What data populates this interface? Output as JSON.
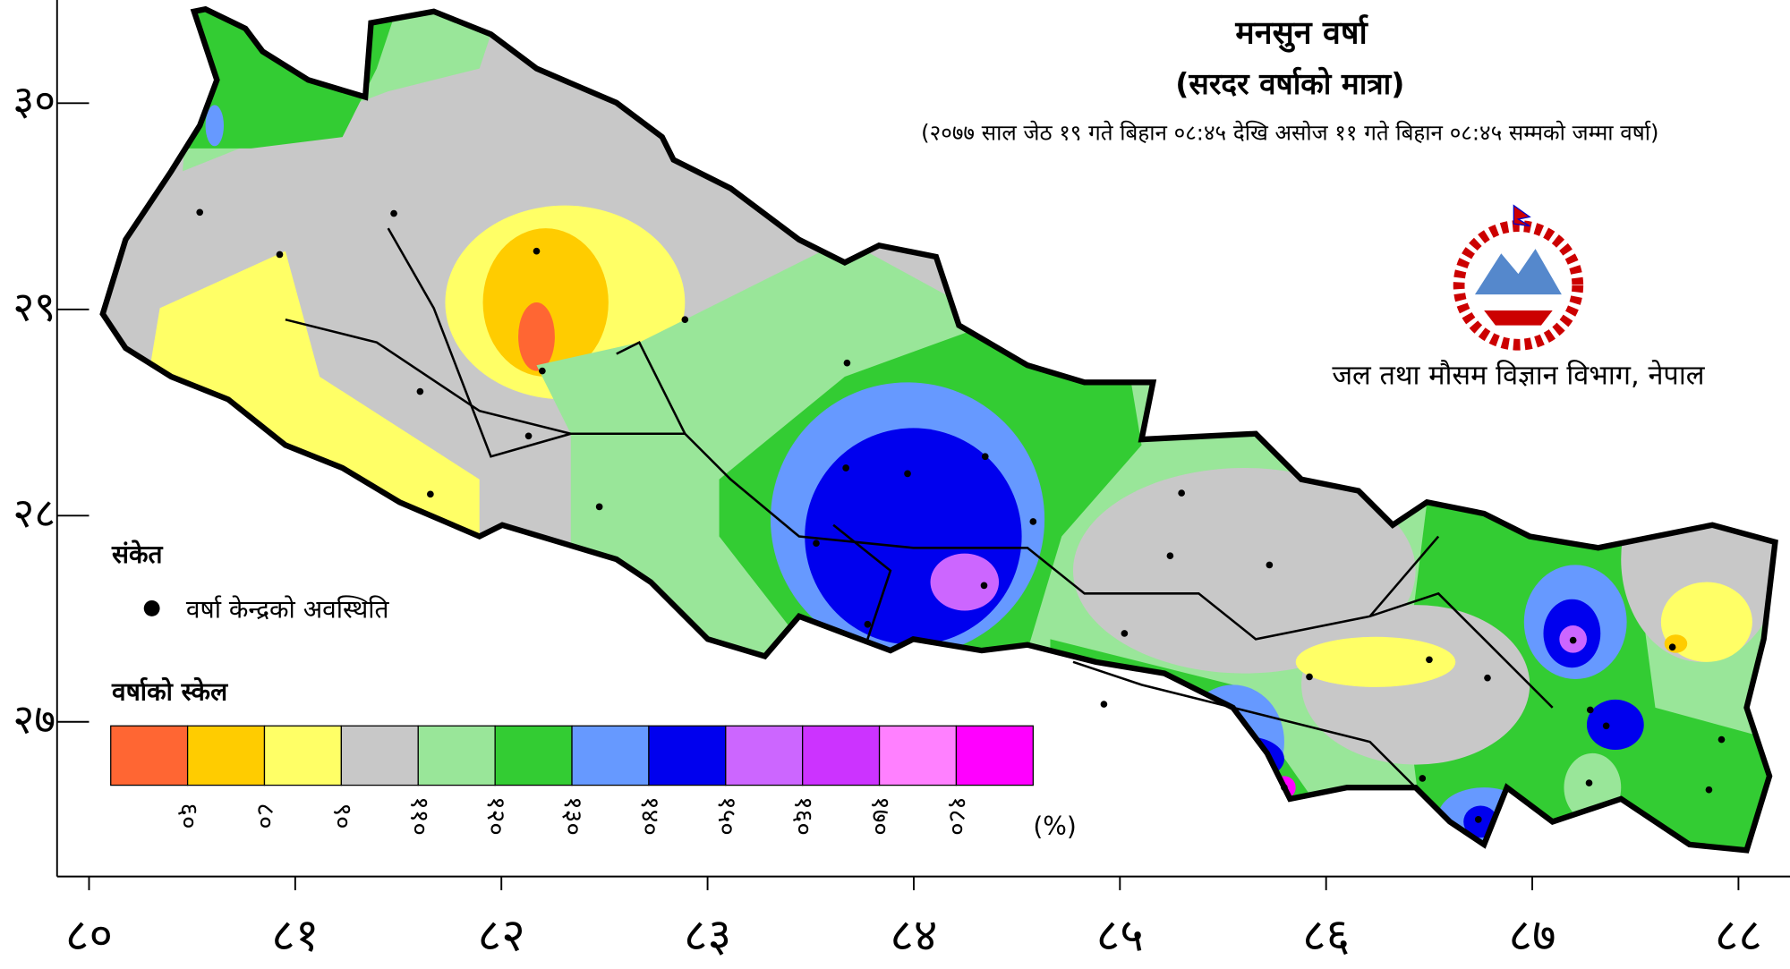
{
  "header": {
    "title": "मनसुन वर्षा",
    "subtitle": "(सरदर वर्षाको मात्रा)",
    "period": "(२०७७ साल जेठ १९ गते बिहान ०८:४५ देखि असोज ११ गते बिहान ०८:४५ सम्मको जम्मा वर्षा)",
    "organization": "जल तथा मौसम विज्ञान विभाग, नेपाल"
  },
  "legend": {
    "title": "संकेत",
    "station_label": "वर्षा केन्द्रको अवस्थिति"
  },
  "scale": {
    "title": "वर्षाको स्केल",
    "unit": "(%)",
    "colors": [
      "#ff6633",
      "#ffcc00",
      "#ffff66",
      "#c8c8c8",
      "#99e699",
      "#33cc33",
      "#6699ff",
      "#0000ee",
      "#cc66ff",
      "#cc33ff",
      "#ff80ff",
      "#ff00ff"
    ],
    "labels": [
      {
        "value": 60,
        "label": "६०"
      },
      {
        "value": 80,
        "label": "८०"
      },
      {
        "value": 90,
        "label": "९०"
      },
      {
        "value": 110,
        "label": "११०"
      },
      {
        "value": 120,
        "label": "१२०"
      },
      {
        "value": 130,
        "label": "१३०"
      },
      {
        "value": 140,
        "label": "१४०"
      },
      {
        "value": 150,
        "label": "१५०"
      },
      {
        "value": 160,
        "label": "१६०"
      },
      {
        "value": 170,
        "label": "१७०"
      },
      {
        "value": 180,
        "label": "१८०"
      }
    ]
  },
  "axes": {
    "xlim": [
      79.845,
      88.25
    ],
    "ylim": [
      26.25,
      30.5
    ],
    "xticks": [
      {
        "value": 80,
        "label": "८०"
      },
      {
        "value": 81,
        "label": "८१"
      },
      {
        "value": 82,
        "label": "८२"
      },
      {
        "value": 83,
        "label": "८३"
      },
      {
        "value": 84,
        "label": "८४"
      },
      {
        "value": 85,
        "label": "८५"
      },
      {
        "value": 86,
        "label": "८६"
      },
      {
        "value": 87,
        "label": "८७"
      },
      {
        "value": 88,
        "label": "८८"
      }
    ],
    "yticks": [
      {
        "value": 30,
        "label": "३०"
      },
      {
        "value": 29,
        "label": "२९"
      },
      {
        "value": 28,
        "label": "२८"
      },
      {
        "value": 27,
        "label": "२७"
      }
    ]
  }
}
